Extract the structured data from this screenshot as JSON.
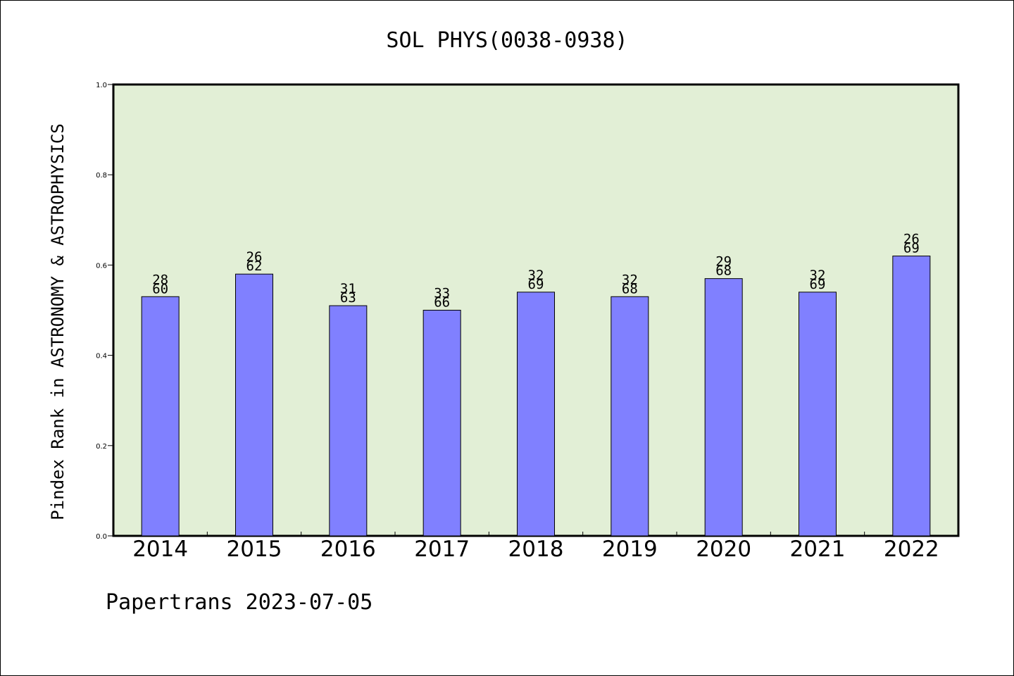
{
  "chart_data": {
    "type": "bar",
    "title": "SOL PHYS(0038-0938)",
    "ylabel": "Pindex Rank in ASTRONOMY & ASTROPHYSICS",
    "xlabel": "",
    "footer": "Papertrans 2023-07-05",
    "categories": [
      "2014",
      "2015",
      "2016",
      "2017",
      "2018",
      "2019",
      "2020",
      "2021",
      "2022"
    ],
    "values": [
      0.53,
      0.58,
      0.51,
      0.5,
      0.54,
      0.53,
      0.57,
      0.54,
      0.62
    ],
    "bar_labels": [
      [
        "28",
        "60"
      ],
      [
        "26",
        "62"
      ],
      [
        "31",
        "63"
      ],
      [
        "33",
        "66"
      ],
      [
        "32",
        "69"
      ],
      [
        "32",
        "68"
      ],
      [
        "29",
        "68"
      ],
      [
        "32",
        "69"
      ],
      [
        "26",
        "69"
      ]
    ],
    "ylim": [
      0.0,
      1.0
    ],
    "yticks": [
      "0.0",
      "0.2",
      "0.4",
      "0.6",
      "0.8",
      "1.0"
    ],
    "grid": false,
    "legend": "none",
    "colors": {
      "plot_background": "#e2efd6",
      "bar": "#8080ff",
      "bar_edge": "#000000",
      "axis": "#000000"
    }
  }
}
